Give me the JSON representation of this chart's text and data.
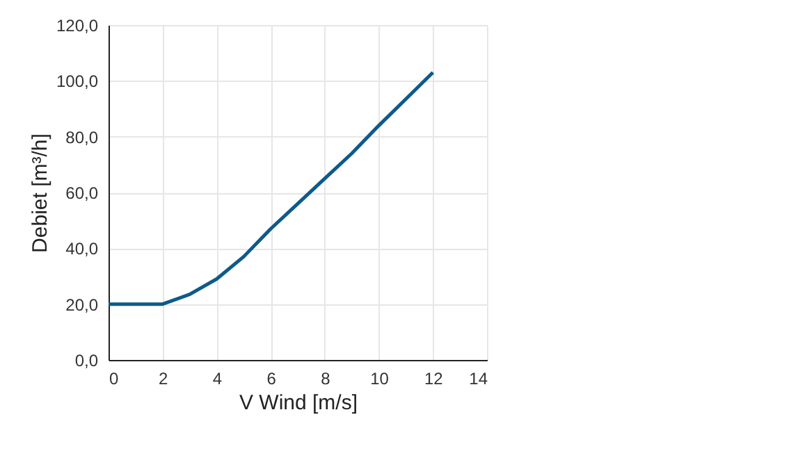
{
  "chart_data": {
    "type": "line",
    "xlabel": "V Wind [m/s]",
    "ylabel": "Debiet [m³/h]",
    "x": [
      0,
      1,
      2,
      3,
      4,
      5,
      6,
      7,
      8,
      9,
      10,
      11,
      12
    ],
    "series": [
      {
        "color": "#0e5a8a",
        "values": [
          20,
          20,
          20,
          23.5,
          29,
          37,
          47,
          56,
          65,
          74,
          84,
          93.5,
          103
        ]
      }
    ],
    "xlim": [
      0,
      14
    ],
    "xticks": [
      0,
      2,
      4,
      6,
      8,
      10,
      12,
      14
    ],
    "ylim": [
      0,
      120
    ],
    "yticks": [
      {
        "value": 0,
        "label": "0,0"
      },
      {
        "value": 20,
        "label": "20,0"
      },
      {
        "value": 40,
        "label": "40,0"
      },
      {
        "value": 60,
        "label": "60,0"
      },
      {
        "value": 80,
        "label": "80,0"
      },
      {
        "value": 100,
        "label": "100,0"
      },
      {
        "value": 120,
        "label": "120,0"
      }
    ],
    "grid": true,
    "marker": "none",
    "line_style": "solid"
  }
}
